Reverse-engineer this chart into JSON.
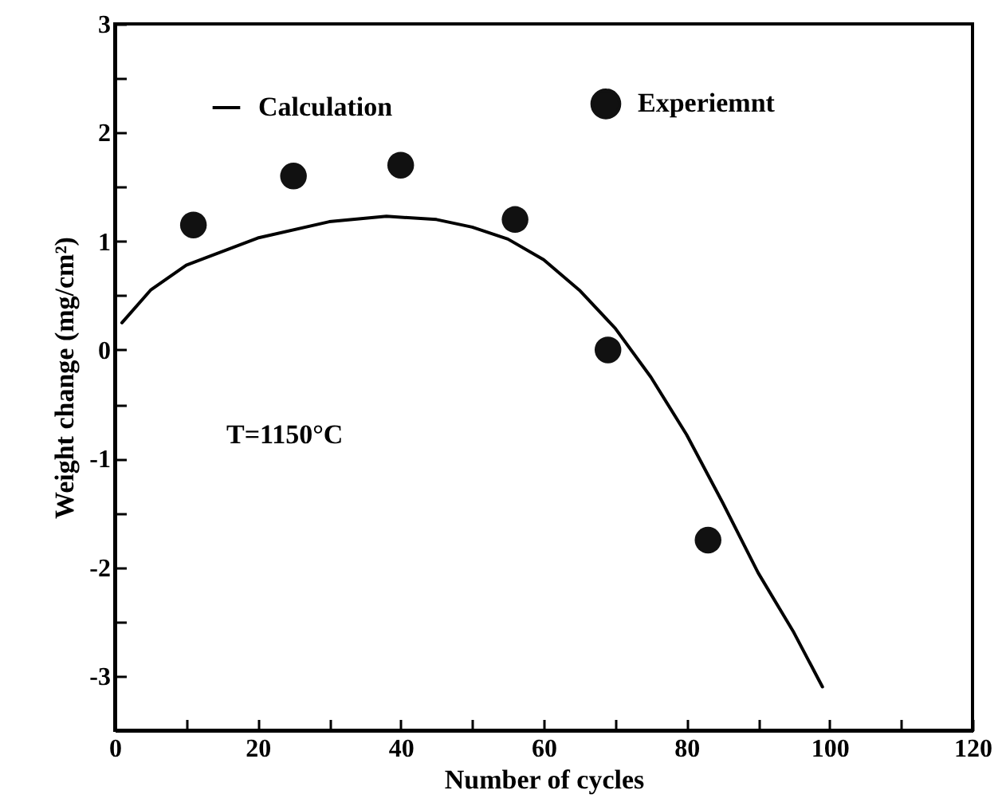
{
  "chart_data": {
    "type": "scatter",
    "xlabel": "Number of cycles",
    "ylabel": "Weight change (mg/cm²)",
    "xlim": [
      0,
      120
    ],
    "ylim": [
      -3.5,
      3
    ],
    "xticks": [
      0,
      {
        "value": 10,
        "label": null
      },
      20,
      {
        "value": 30,
        "label": null
      },
      40,
      {
        "value": 50,
        "label": null
      },
      60,
      {
        "value": 70,
        "label": null
      },
      80,
      {
        "value": 90,
        "label": null
      },
      100,
      {
        "value": 110,
        "label": null
      },
      120
    ],
    "yticks": [
      -3,
      {
        "value": -2.5,
        "label": null
      },
      -2,
      {
        "value": -1.5,
        "label": null
      },
      -1,
      {
        "value": -0.5,
        "label": null
      },
      0,
      {
        "value": 0.5,
        "label": null
      },
      1,
      {
        "value": 1.5,
        "label": null
      },
      2,
      {
        "value": 2.5,
        "label": null
      },
      3
    ],
    "legend": "top",
    "grid": false,
    "annotations": [
      "T=1150°C"
    ],
    "series": [
      {
        "name": "Calculation",
        "type": "line",
        "color": "#000000",
        "marker": "none",
        "line_style": "solid",
        "x": [
          1,
          5,
          10,
          20,
          30,
          38,
          45,
          50,
          55,
          60,
          65,
          70,
          75,
          80,
          85,
          90,
          95,
          99
        ],
        "values": [
          0.25,
          0.55,
          0.78,
          1.03,
          1.18,
          1.23,
          1.2,
          1.13,
          1.02,
          0.83,
          0.55,
          0.2,
          -0.25,
          -0.78,
          -1.4,
          -2.05,
          -2.6,
          -3.1
        ]
      },
      {
        "name": "Experiemnt",
        "type": "scatter",
        "color": "#111111",
        "marker": "circle",
        "x": [
          11,
          25,
          40,
          56,
          69,
          83
        ],
        "values": [
          1.15,
          1.6,
          1.7,
          1.2,
          0,
          -1.75
        ]
      }
    ]
  }
}
